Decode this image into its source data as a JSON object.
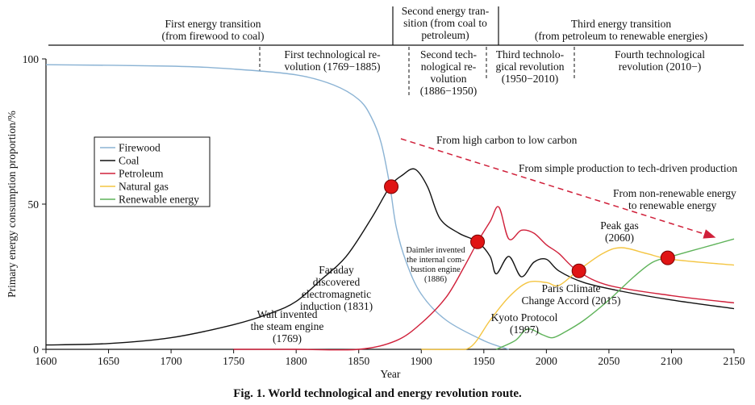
{
  "caption": "Fig. 1.    World technological and energy revolution route.",
  "transitions": [
    {
      "line1": "First energy transition",
      "line2": "(from firewood to coal)"
    },
    {
      "line1": "Second energy tran-",
      "line2": "sition (from coal to",
      "line3": "petroleum)"
    },
    {
      "line1": "Third energy transition",
      "line2": "(from petroleum to renewable energies)"
    }
  ],
  "revolutions": [
    {
      "line1": "First technological re-",
      "line2": "volution (1769−1885)"
    },
    {
      "line1": "Second tech-",
      "line2": "nological re-",
      "line3": "volution",
      "line4": "(1886−1950)"
    },
    {
      "line1": "Third technolo-",
      "line2": "gical revolution",
      "line3": "(1950−2010)"
    },
    {
      "line1": "Fourth technological",
      "line2": "revolution (2010−)"
    }
  ],
  "trends": [
    "From high carbon to low carbon",
    "From simple production to tech-driven production",
    "From non-renewable energy",
    "to renewable energy"
  ],
  "annotations": {
    "walt": [
      "Walt invented",
      "the steam engine",
      "(1769)"
    ],
    "faraday": [
      "Faraday",
      "discovered",
      "electromagnetic",
      "induction (1831)"
    ],
    "daimler": [
      "Daimler invented",
      "the internal com-",
      "bustion engine",
      "(1886)"
    ],
    "kyoto": [
      "Kyoto Protocol",
      "(1997)"
    ],
    "paris": [
      "Paris Climate",
      "Change Accord (2015)"
    ],
    "peak": [
      "Peak gas",
      "(2060)"
    ]
  },
  "chart_data": {
    "type": "line",
    "title": "",
    "xlabel": "Year",
    "ylabel": "Primary energy consumption proportion/%",
    "xlim": [
      1600,
      2150
    ],
    "ylim": [
      0,
      100
    ],
    "xticks": [
      1600,
      1650,
      1700,
      1750,
      1800,
      1850,
      1900,
      1950,
      2000,
      2050,
      2100,
      2150
    ],
    "yticks": [
      0,
      50,
      100
    ],
    "legend_position": "left",
    "series": [
      {
        "name": "Firewood",
        "color": "#8bb3d4",
        "x": [
          1600,
          1700,
          1750,
          1800,
          1830,
          1850,
          1860,
          1868,
          1875,
          1880,
          1888,
          1900,
          1920,
          1950,
          1970
        ],
        "y": [
          98,
          97.5,
          96.5,
          94.5,
          91,
          86,
          80,
          71,
          56,
          42,
          30,
          19,
          10,
          3,
          0
        ]
      },
      {
        "name": "Coal",
        "color": "#111111",
        "x": [
          1600,
          1650,
          1700,
          1750,
          1780,
          1800,
          1820,
          1840,
          1860,
          1875,
          1885,
          1895,
          1905,
          1915,
          1930,
          1945,
          1955,
          1960,
          1970,
          1980,
          1990,
          2000,
          2010,
          2030,
          2060,
          2100,
          2150
        ],
        "y": [
          1.5,
          2,
          4,
          8.5,
          12.5,
          16.5,
          24,
          32,
          45,
          56,
          60,
          62,
          56,
          45,
          40,
          37,
          32,
          26,
          32,
          25,
          30,
          31,
          27,
          23,
          20,
          17,
          14
        ]
      },
      {
        "name": "Petroleum",
        "color": "#d0203a",
        "x": [
          1750,
          1800,
          1850,
          1880,
          1900,
          1920,
          1935,
          1945,
          1955,
          1962,
          1970,
          1980,
          1990,
          2000,
          2010,
          2025,
          2050,
          2100,
          2150
        ],
        "y": [
          0,
          0,
          0,
          3,
          9,
          18,
          29,
          37,
          44,
          49,
          38,
          41,
          40,
          36,
          33,
          27,
          22,
          18.5,
          16
        ]
      },
      {
        "name": "Natural gas",
        "color": "#f4c542",
        "x": [
          1900,
          1925,
          1940,
          1955,
          1970,
          1985,
          2000,
          2010,
          2025,
          2045,
          2060,
          2080,
          2100,
          2150
        ],
        "y": [
          0,
          0,
          1,
          10,
          18,
          23,
          23,
          22,
          27,
          33,
          35,
          33,
          31,
          29
        ]
      },
      {
        "name": "Renewable energy",
        "color": "#5fb35a",
        "x": [
          1960,
          1975,
          1985,
          1997,
          2005,
          2015,
          2030,
          2050,
          2070,
          2085,
          2100,
          2125,
          2150
        ],
        "y": [
          0,
          3,
          7,
          5,
          4,
          6,
          10,
          17,
          25,
          30,
          32,
          35,
          38
        ]
      }
    ],
    "markers": [
      {
        "x": 1876,
        "y": 56
      },
      {
        "x": 1945,
        "y": 37
      },
      {
        "x": 2026,
        "y": 27
      },
      {
        "x": 2097,
        "y": 31.5
      }
    ]
  }
}
